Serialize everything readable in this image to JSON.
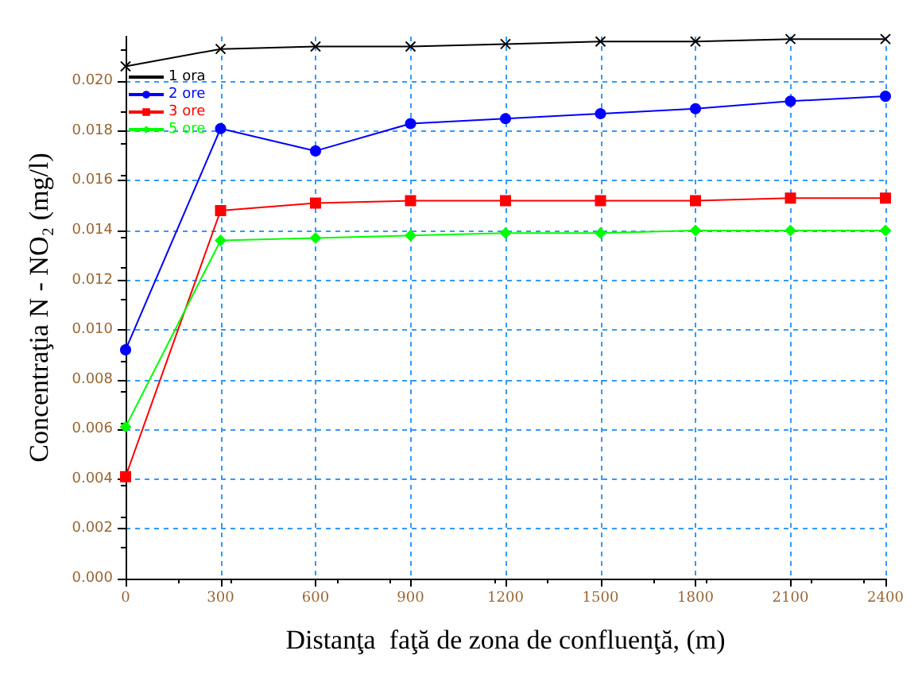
{
  "chart_data": {
    "type": "line",
    "xlabel": "Distanţa  faţă de zona de confluenţă, (m)",
    "ylabel": "Concentraţia N - NO₂ (mg/l)",
    "x": [
      0,
      300,
      600,
      900,
      1200,
      1500,
      1800,
      2100,
      2400
    ],
    "series": [
      {
        "name": "1 ora",
        "color": "#000000",
        "marker": "cross",
        "values": [
          0.0206,
          0.0213,
          0.0214,
          0.0214,
          0.0215,
          0.0216,
          0.0216,
          0.0217,
          0.0217
        ]
      },
      {
        "name": "2 ore",
        "color": "#0000ff",
        "marker": "circle",
        "values": [
          0.0092,
          0.0181,
          0.0172,
          0.0183,
          0.0185,
          0.0187,
          0.0189,
          0.0192,
          0.0194
        ]
      },
      {
        "name": "3 ore",
        "color": "#ff0000",
        "marker": "square",
        "values": [
          0.0041,
          0.0148,
          0.0151,
          0.0152,
          0.0152,
          0.0152,
          0.0152,
          0.0153,
          0.0153
        ]
      },
      {
        "name": "5 ore",
        "color": "#00ff00",
        "marker": "diamond",
        "values": [
          0.0061,
          0.0136,
          0.0137,
          0.0138,
          0.0139,
          0.0139,
          0.014,
          0.014,
          0.014
        ]
      }
    ],
    "xlim": [
      0,
      2400
    ],
    "xticks": [
      0,
      300,
      600,
      900,
      1200,
      1500,
      1800,
      2100,
      2400
    ],
    "ylim": [
      0,
      0.0218
    ],
    "yticks": [
      {
        "value": 0,
        "label": "0.000"
      },
      {
        "value": 0.002,
        "label": "0.002"
      },
      {
        "value": 0.004,
        "label": "0.004"
      },
      {
        "value": 0.006,
        "label": "0.006"
      },
      {
        "value": 0.008,
        "label": "0.008"
      },
      {
        "value": 0.01,
        "label": "0.010"
      },
      {
        "value": 0.012,
        "label": "0.012"
      },
      {
        "value": 0.014,
        "label": "0.014"
      },
      {
        "value": 0.016,
        "label": "0.016"
      },
      {
        "value": 0.018,
        "label": "0.018"
      },
      {
        "value": 0.02,
        "label": "0.020"
      }
    ],
    "grid": true,
    "legend": "top left",
    "line_style": "solid"
  }
}
